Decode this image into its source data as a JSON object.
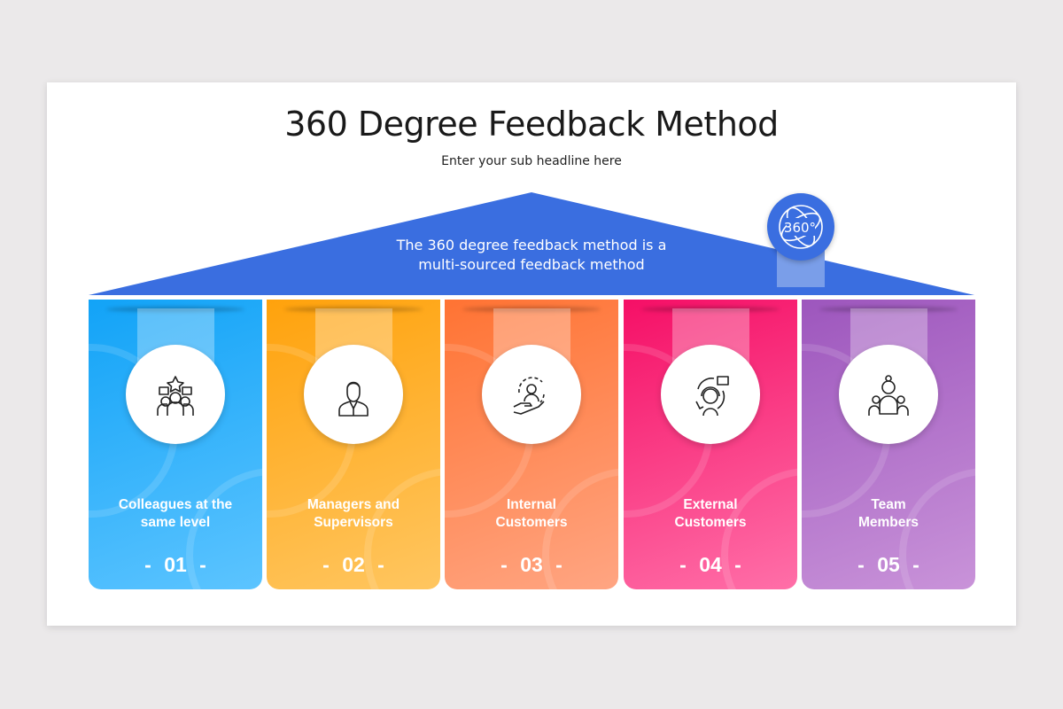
{
  "header": {
    "title": "360 Degree Feedback Method",
    "subtitle": "Enter your sub headline here"
  },
  "roof": {
    "text_line1": "The 360 degree feedback method is a",
    "text_line2": "multi-sourced feedback method",
    "color": "#3a6ee0",
    "badge_icon": "360-degree-icon",
    "badge_text": "360°"
  },
  "cards": [
    {
      "label_line1": "Colleagues at the",
      "label_line2": "same level",
      "number": "- 01 -",
      "icon": "team-star-icon",
      "color_top": "#12a3f7",
      "color_bottom": "#5cc4ff"
    },
    {
      "label_line1": "Managers and",
      "label_line2": "Supervisors",
      "number": "- 02 -",
      "icon": "manager-icon",
      "color_top": "#ffa20c",
      "color_bottom": "#ffc660"
    },
    {
      "label_line1": "Internal",
      "label_line2": "Customers",
      "number": "- 03 -",
      "icon": "customer-hand-icon",
      "color_top": "#ff7333",
      "color_bottom": "#ffa582"
    },
    {
      "label_line1": "External",
      "label_line2": "Customers",
      "number": "- 04 -",
      "icon": "support-agent-icon",
      "color_top": "#f50f66",
      "color_bottom": "#ff6fa8"
    },
    {
      "label_line1": "Team",
      "label_line2": "Members",
      "number": "- 05 -",
      "icon": "team-members-icon",
      "color_top": "#9d56bd",
      "color_bottom": "#c993d9"
    }
  ]
}
